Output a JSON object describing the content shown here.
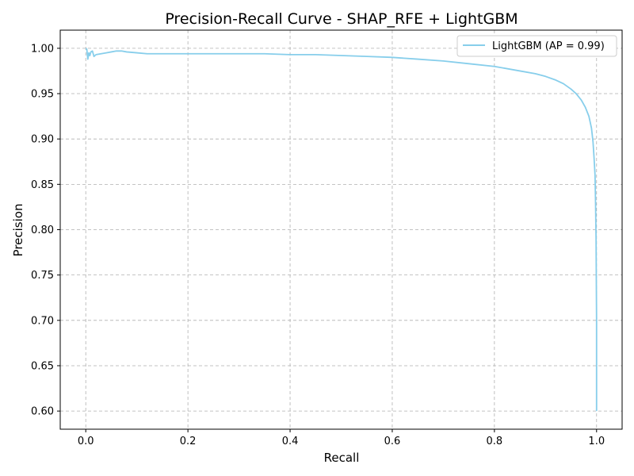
{
  "chart_data": {
    "type": "line",
    "title": "Precision-Recall Curve - SHAP_RFE + LightGBM",
    "xlabel": "Recall",
    "ylabel": "Precision",
    "xlim": [
      -0.05,
      1.05
    ],
    "ylim": [
      0.58,
      1.02
    ],
    "xticks": [
      0.0,
      0.2,
      0.4,
      0.6,
      0.8,
      1.0
    ],
    "xtick_labels": [
      "0.0",
      "0.2",
      "0.4",
      "0.6",
      "0.8",
      "1.0"
    ],
    "yticks": [
      0.6,
      0.65,
      0.7,
      0.75,
      0.8,
      0.85,
      0.9,
      0.95,
      1.0
    ],
    "ytick_labels": [
      "0.60",
      "0.65",
      "0.70",
      "0.75",
      "0.80",
      "0.85",
      "0.90",
      "0.95",
      "1.00"
    ],
    "grid": true,
    "legend_position": "top-right",
    "series": [
      {
        "name": "LightGBM (AP = 0.99)",
        "color": "#87ceeb",
        "x": [
          0.0,
          0.002,
          0.004,
          0.006,
          0.008,
          0.01,
          0.013,
          0.016,
          0.02,
          0.03,
          0.04,
          0.05,
          0.06,
          0.07,
          0.08,
          0.1,
          0.12,
          0.15,
          0.18,
          0.2,
          0.25,
          0.3,
          0.35,
          0.4,
          0.45,
          0.5,
          0.55,
          0.6,
          0.65,
          0.7,
          0.75,
          0.8,
          0.85,
          0.88,
          0.9,
          0.92,
          0.935,
          0.95,
          0.96,
          0.97,
          0.978,
          0.985,
          0.99,
          0.993,
          0.995,
          0.997,
          0.998,
          0.999,
          1.0,
          1.0
        ],
        "y": [
          1.0,
          0.999,
          0.988,
          0.995,
          0.992,
          0.996,
          0.997,
          0.991,
          0.993,
          0.994,
          0.995,
          0.996,
          0.997,
          0.997,
          0.996,
          0.995,
          0.994,
          0.994,
          0.994,
          0.994,
          0.994,
          0.994,
          0.994,
          0.993,
          0.993,
          0.992,
          0.991,
          0.99,
          0.988,
          0.986,
          0.983,
          0.98,
          0.975,
          0.972,
          0.969,
          0.965,
          0.961,
          0.955,
          0.95,
          0.943,
          0.935,
          0.925,
          0.912,
          0.897,
          0.88,
          0.86,
          0.83,
          0.79,
          0.7,
          0.6
        ]
      }
    ]
  }
}
